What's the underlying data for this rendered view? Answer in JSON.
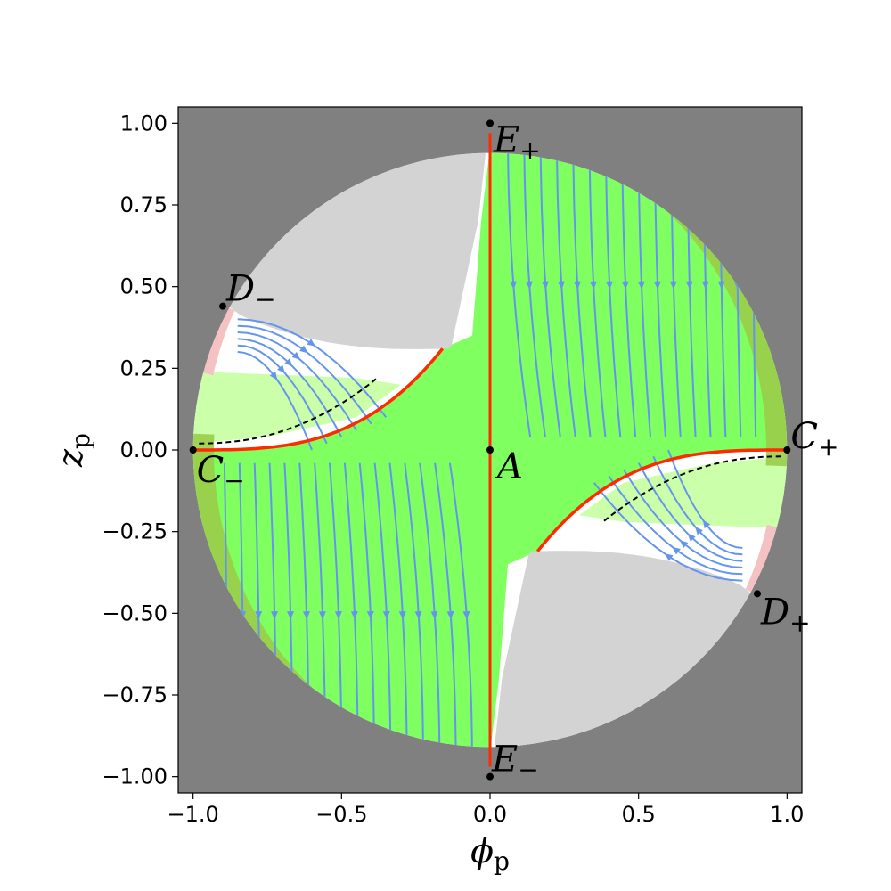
{
  "chart_data": {
    "type": "phase-portrait",
    "xlabel": "ϕ",
    "xlabel_sub": "p",
    "ylabel": "z",
    "ylabel_sub": "p",
    "xlim": [
      -1.05,
      1.05
    ],
    "ylim": [
      -1.05,
      1.05
    ],
    "xticks": [
      -1.0,
      -0.5,
      0.0,
      0.5,
      1.0
    ],
    "xtick_labels": [
      "−1.0",
      "−0.5",
      "0.0",
      "0.5",
      "1.0"
    ],
    "yticks": [
      1.0,
      0.75,
      0.5,
      0.25,
      0.0,
      -0.25,
      -0.5,
      -0.75,
      -1.0
    ],
    "ytick_labels": [
      "1.00",
      "0.75",
      "0.50",
      "0.25",
      "0.00",
      "−0.25",
      "−0.50",
      "−0.75",
      "−1.00"
    ],
    "grid": false,
    "legend": "none",
    "colors": {
      "outside": "#808080",
      "forbidden": "#d3d3d3",
      "accelerating": "#80ff60",
      "pale": "#ccffaa",
      "olive_band": "#9acd4a",
      "pink_band": "#f4c2c2",
      "streamline": "#6495ed",
      "separatrix": "#ff2a00",
      "dashed": "#000000"
    },
    "critical_points": [
      {
        "name": "E",
        "sub": "+",
        "x": 0.0,
        "y": 1.0
      },
      {
        "name": "E",
        "sub": "−",
        "x": 0.0,
        "y": -1.0
      },
      {
        "name": "D",
        "sub": "−",
        "x": -0.9,
        "y": 0.44
      },
      {
        "name": "D",
        "sub": "+",
        "x": 0.9,
        "y": -0.44
      },
      {
        "name": "C",
        "sub": "+",
        "x": 1.0,
        "y": 0.0
      },
      {
        "name": "C",
        "sub": "−",
        "x": -1.0,
        "y": 0.0
      },
      {
        "name": "A",
        "sub": "",
        "x": 0.0,
        "y": 0.0
      }
    ]
  }
}
